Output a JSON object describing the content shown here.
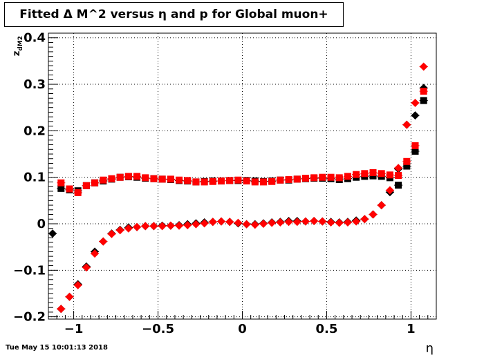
{
  "title": "Fitted Δ M^2 versus η and p for Global muon+",
  "timestamp": "Tue May 15 10:01:13 2018",
  "chart_data": {
    "type": "scatter",
    "title": "Fitted Δ M^2 versus η and p for Global muon+",
    "xlabel": "η",
    "ylabel": "z_dM2",
    "xlim": [
      -1.15,
      1.15
    ],
    "ylim": [
      -0.205,
      0.41
    ],
    "grid": true,
    "x_ticks": [
      -1,
      -0.5,
      0,
      0.5,
      1
    ],
    "x_tick_labels": [
      "−1",
      "−0.5",
      "0",
      "0.5",
      "1"
    ],
    "y_ticks": [
      -0.2,
      -0.1,
      0,
      0.1,
      0.2,
      0.3,
      0.4
    ],
    "y_tick_labels": [
      "−0.2",
      "−0.1",
      "0",
      "0.1",
      "0.2",
      "0.3",
      "0.4"
    ],
    "series": [
      {
        "marker": "diamond",
        "color": "#000000",
        "x": [
          -1.125,
          -1.075,
          -1.025,
          -0.975,
          -0.925,
          -0.875,
          -0.825,
          -0.775,
          -0.725,
          -0.675,
          -0.625,
          -0.575,
          -0.525,
          -0.475,
          -0.425,
          -0.375,
          -0.325,
          -0.275,
          -0.225,
          -0.175,
          -0.125,
          -0.075,
          -0.025,
          0.025,
          0.075,
          0.125,
          0.175,
          0.225,
          0.275,
          0.325,
          0.375,
          0.425,
          0.475,
          0.525,
          0.575,
          0.625,
          0.675,
          0.725,
          0.775,
          0.825,
          0.875,
          0.925,
          0.975,
          1.025,
          1.075
        ],
        "y": [
          -0.021,
          -0.183,
          -0.157,
          -0.13,
          -0.092,
          -0.06,
          -0.038,
          -0.021,
          -0.013,
          -0.008,
          -0.007,
          -0.005,
          -0.005,
          -0.004,
          -0.004,
          -0.003,
          -0.001,
          0.001,
          0.003,
          0.004,
          0.005,
          0.004,
          0.001,
          -0.001,
          -0.001,
          0.001,
          0.003,
          0.004,
          0.006,
          0.006,
          0.005,
          0.006,
          0.005,
          0.004,
          0.003,
          0.004,
          0.007,
          0.01,
          0.02,
          0.04,
          0.068,
          0.118,
          0.213,
          0.233,
          0.292
        ]
      },
      {
        "marker": "square",
        "color": "#000000",
        "x": [
          -1.075,
          -1.025,
          -0.975,
          -0.925,
          -0.875,
          -0.825,
          -0.775,
          -0.725,
          -0.675,
          -0.625,
          -0.575,
          -0.525,
          -0.475,
          -0.425,
          -0.375,
          -0.325,
          -0.275,
          -0.225,
          -0.175,
          -0.125,
          -0.075,
          -0.025,
          0.025,
          0.075,
          0.125,
          0.175,
          0.225,
          0.275,
          0.325,
          0.375,
          0.425,
          0.475,
          0.525,
          0.575,
          0.625,
          0.675,
          0.725,
          0.775,
          0.825,
          0.875,
          0.925,
          0.975,
          1.025,
          1.075
        ],
        "y": [
          0.076,
          0.073,
          0.071,
          0.082,
          0.088,
          0.092,
          0.096,
          0.1,
          0.101,
          0.1,
          0.098,
          0.097,
          0.096,
          0.095,
          0.093,
          0.092,
          0.09,
          0.091,
          0.092,
          0.092,
          0.093,
          0.093,
          0.093,
          0.092,
          0.091,
          0.092,
          0.094,
          0.094,
          0.096,
          0.097,
          0.098,
          0.098,
          0.097,
          0.095,
          0.097,
          0.1,
          0.102,
          0.103,
          0.102,
          0.099,
          0.083,
          0.124,
          0.156,
          0.265
        ]
      },
      {
        "marker": "diamond",
        "color": "#ff0000",
        "x": [
          -1.075,
          -1.025,
          -0.975,
          -0.925,
          -0.875,
          -0.825,
          -0.775,
          -0.725,
          -0.675,
          -0.625,
          -0.575,
          -0.525,
          -0.475,
          -0.425,
          -0.375,
          -0.325,
          -0.275,
          -0.225,
          -0.175,
          -0.125,
          -0.075,
          -0.025,
          0.025,
          0.075,
          0.125,
          0.175,
          0.225,
          0.275,
          0.325,
          0.375,
          0.425,
          0.475,
          0.525,
          0.575,
          0.625,
          0.675,
          0.725,
          0.775,
          0.825,
          0.875,
          0.925,
          0.975,
          1.025,
          1.075
        ],
        "y": [
          -0.183,
          -0.157,
          -0.132,
          -0.094,
          -0.064,
          -0.038,
          -0.022,
          -0.014,
          -0.01,
          -0.007,
          -0.005,
          -0.005,
          -0.005,
          -0.004,
          -0.004,
          -0.003,
          -0.001,
          0.001,
          0.004,
          0.005,
          0.004,
          0.002,
          -0.001,
          -0.002,
          0.0,
          0.002,
          0.003,
          0.004,
          0.004,
          0.005,
          0.006,
          0.005,
          0.003,
          0.002,
          0.003,
          0.005,
          0.01,
          0.02,
          0.04,
          0.072,
          0.12,
          0.213,
          0.26,
          0.338
        ]
      },
      {
        "marker": "square",
        "color": "#ff0000",
        "x": [
          -1.075,
          -1.025,
          -0.975,
          -0.925,
          -0.875,
          -0.825,
          -0.775,
          -0.725,
          -0.675,
          -0.625,
          -0.575,
          -0.525,
          -0.475,
          -0.425,
          -0.375,
          -0.325,
          -0.275,
          -0.225,
          -0.175,
          -0.125,
          -0.075,
          -0.025,
          0.025,
          0.075,
          0.125,
          0.175,
          0.225,
          0.275,
          0.325,
          0.375,
          0.425,
          0.475,
          0.525,
          0.575,
          0.625,
          0.675,
          0.725,
          0.775,
          0.825,
          0.875,
          0.925,
          0.975,
          1.025,
          1.075
        ],
        "y": [
          0.088,
          0.075,
          0.067,
          0.082,
          0.088,
          0.094,
          0.097,
          0.1,
          0.102,
          0.102,
          0.099,
          0.097,
          0.096,
          0.096,
          0.094,
          0.093,
          0.09,
          0.09,
          0.091,
          0.092,
          0.093,
          0.094,
          0.092,
          0.09,
          0.09,
          0.091,
          0.094,
          0.095,
          0.096,
          0.098,
          0.099,
          0.1,
          0.1,
          0.099,
          0.102,
          0.106,
          0.108,
          0.11,
          0.108,
          0.105,
          0.104,
          0.134,
          0.168,
          0.285
        ]
      }
    ]
  }
}
